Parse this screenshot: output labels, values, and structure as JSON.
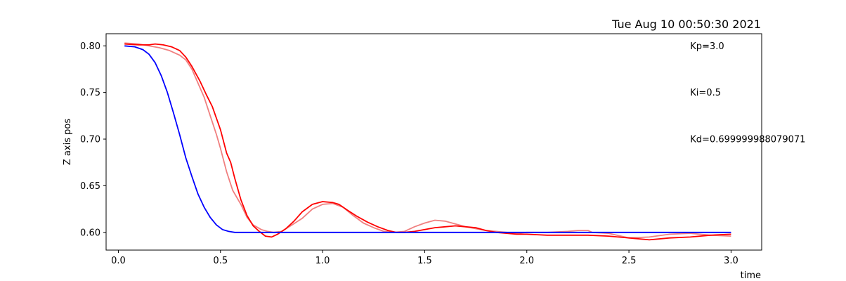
{
  "chart_data": {
    "type": "line",
    "title": "Tue Aug 10 00:50:30 2021",
    "xlabel": "time",
    "ylabel": "Z axis pos",
    "xlim": [
      -0.06,
      3.15
    ],
    "ylim": [
      0.581,
      0.813
    ],
    "xticks": [
      0.0,
      0.5,
      1.0,
      1.5,
      2.0,
      2.5,
      3.0
    ],
    "xtick_labels": [
      "0.0",
      "0.5",
      "1.0",
      "1.5",
      "2.0",
      "2.5",
      "3.0"
    ],
    "yticks": [
      0.6,
      0.65,
      0.7,
      0.75,
      0.8
    ],
    "ytick_labels": [
      "0.60",
      "0.65",
      "0.70",
      "0.75",
      "0.80"
    ],
    "grid": false,
    "annotations": [
      {
        "text": "Kp=3.0",
        "x": 2.8,
        "y": 0.8
      },
      {
        "text": "Ki=0.5",
        "x": 2.8,
        "y": 0.75
      },
      {
        "text": "Kd=0.699999988079071",
        "x": 2.8,
        "y": 0.7
      }
    ],
    "series": [
      {
        "color": "#f08080",
        "x": [
          0.03,
          0.1,
          0.15,
          0.2,
          0.25,
          0.3,
          0.33,
          0.36,
          0.39,
          0.42,
          0.45,
          0.48,
          0.5,
          0.53,
          0.56,
          0.6,
          0.63,
          0.66,
          0.7,
          0.73,
          0.76,
          0.8,
          0.85,
          0.9,
          0.95,
          1.0,
          1.05,
          1.1,
          1.15,
          1.2,
          1.25,
          1.3,
          1.35,
          1.4,
          1.45,
          1.5,
          1.55,
          1.6,
          1.65,
          1.7,
          1.75,
          1.8,
          1.85,
          1.9,
          1.95,
          2.0,
          2.1,
          2.2,
          2.25,
          2.3,
          2.32,
          2.4,
          2.5,
          2.6,
          2.7,
          2.8,
          2.9,
          3.0
        ],
        "y": [
          0.803,
          0.802,
          0.8,
          0.798,
          0.795,
          0.79,
          0.785,
          0.775,
          0.76,
          0.745,
          0.725,
          0.705,
          0.69,
          0.665,
          0.645,
          0.63,
          0.616,
          0.608,
          0.603,
          0.601,
          0.6,
          0.601,
          0.608,
          0.615,
          0.625,
          0.63,
          0.631,
          0.627,
          0.618,
          0.61,
          0.605,
          0.601,
          0.6,
          0.601,
          0.606,
          0.61,
          0.613,
          0.612,
          0.609,
          0.606,
          0.604,
          0.602,
          0.601,
          0.6,
          0.599,
          0.6,
          0.6,
          0.601,
          0.602,
          0.602,
          0.6,
          0.599,
          0.594,
          0.595,
          0.598,
          0.599,
          0.597,
          0.596
        ]
      },
      {
        "color": "#ff0000",
        "x": [
          0.03,
          0.1,
          0.15,
          0.18,
          0.22,
          0.26,
          0.3,
          0.33,
          0.36,
          0.4,
          0.43,
          0.46,
          0.5,
          0.53,
          0.55,
          0.57,
          0.6,
          0.63,
          0.66,
          0.69,
          0.72,
          0.75,
          0.78,
          0.82,
          0.86,
          0.9,
          0.95,
          1.0,
          1.05,
          1.08,
          1.12,
          1.17,
          1.22,
          1.27,
          1.32,
          1.36,
          1.4,
          1.45,
          1.5,
          1.55,
          1.6,
          1.65,
          1.7,
          1.75,
          1.8,
          1.85,
          1.9,
          1.95,
          2.0,
          2.1,
          2.2,
          2.3,
          2.4,
          2.5,
          2.6,
          2.7,
          2.8,
          2.9,
          3.0
        ],
        "y": [
          0.802,
          0.801,
          0.801,
          0.802,
          0.801,
          0.799,
          0.795,
          0.788,
          0.778,
          0.762,
          0.748,
          0.735,
          0.71,
          0.685,
          0.675,
          0.658,
          0.635,
          0.618,
          0.607,
          0.601,
          0.596,
          0.595,
          0.598,
          0.604,
          0.612,
          0.622,
          0.63,
          0.633,
          0.632,
          0.63,
          0.624,
          0.617,
          0.611,
          0.606,
          0.602,
          0.6,
          0.6,
          0.601,
          0.603,
          0.605,
          0.606,
          0.607,
          0.606,
          0.605,
          0.602,
          0.6,
          0.599,
          0.598,
          0.598,
          0.597,
          0.597,
          0.597,
          0.596,
          0.594,
          0.592,
          0.594,
          0.595,
          0.597,
          0.598
        ]
      },
      {
        "color": "#0000ff",
        "x": [
          0.03,
          0.08,
          0.12,
          0.15,
          0.18,
          0.21,
          0.24,
          0.27,
          0.3,
          0.33,
          0.36,
          0.39,
          0.42,
          0.45,
          0.48,
          0.51,
          0.54,
          0.57,
          0.6,
          0.65,
          0.7,
          0.8,
          1.0,
          1.5,
          2.0,
          2.5,
          3.0
        ],
        "y": [
          0.8,
          0.799,
          0.796,
          0.791,
          0.782,
          0.768,
          0.75,
          0.728,
          0.705,
          0.68,
          0.66,
          0.641,
          0.627,
          0.616,
          0.608,
          0.603,
          0.601,
          0.6,
          0.6,
          0.6,
          0.6,
          0.6,
          0.6,
          0.6,
          0.6,
          0.6,
          0.6
        ]
      }
    ]
  }
}
